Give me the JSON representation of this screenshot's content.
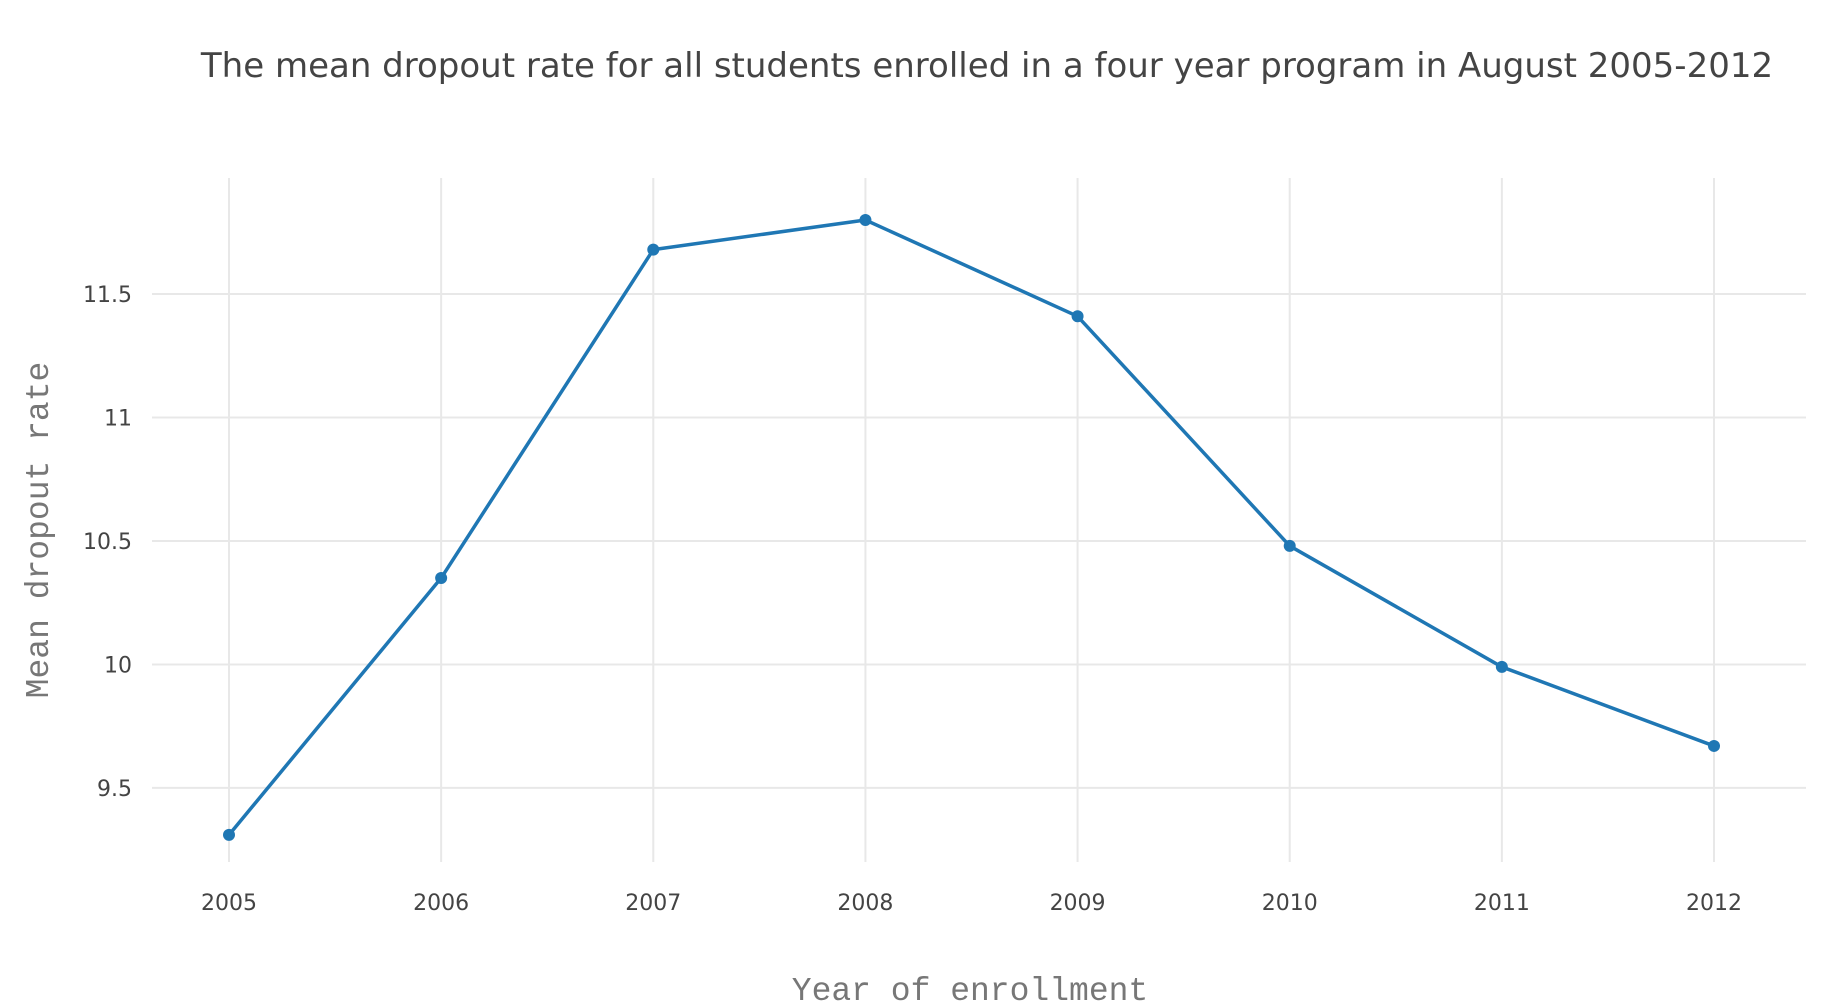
{
  "chart_data": {
    "type": "line",
    "title": "The mean dropout rate for all students enrolled in a four year program in August 2005-2012",
    "xlabel": "Year of enrollment",
    "ylabel": "Mean dropout rate",
    "x": [
      2005,
      2006,
      2007,
      2008,
      2009,
      2010,
      2011,
      2012
    ],
    "series": [
      {
        "values": [
          9.31,
          10.35,
          11.68,
          11.8,
          11.41,
          10.48,
          9.99,
          9.67
        ]
      }
    ],
    "x_ticks": [
      "2005",
      "2006",
      "2007",
      "2008",
      "2009",
      "2010",
      "2011",
      "2012"
    ],
    "y_ticks": [
      9.5,
      10,
      10.5,
      11,
      11.5
    ],
    "y_tick_labels": [
      "9.5",
      "10",
      "10.5",
      "11",
      "11.5"
    ],
    "ylim": [
      9.2,
      11.97
    ],
    "grid": true,
    "legend": "none",
    "line_color": "#1f77b4"
  }
}
